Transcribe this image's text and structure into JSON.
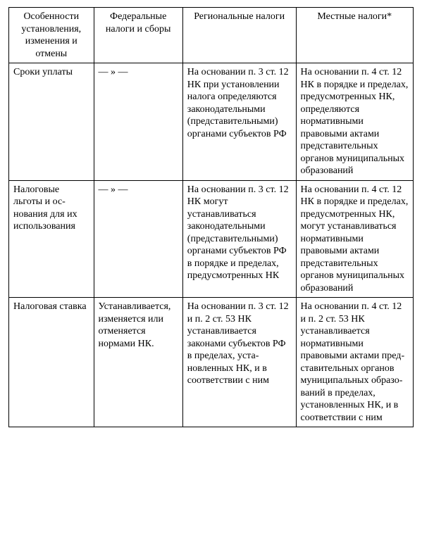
{
  "table": {
    "columns": [
      "Особенности установле­ния, измене­ния и отмены",
      "Федеральные налоги и сборы",
      "Региональные налоги",
      "Местные налоги*"
    ],
    "rows": [
      {
        "c0": "Сроки уп­латы",
        "c1": "— » —",
        "c2": "На основании п. 3 ст. 12 НК при установлении на­лога определяются законодательными (представитель­ными) органами субъектов РФ",
        "c3": "На основании п. 4 ст. 12 НК в по­рядке и пределах, предусмотренных НК, определяют­ся нормативными правовыми ак­тами представи­тельных органов муниципальных образований"
      },
      {
        "c0": "Налоговые льготы и ос­нования для их использо­вания",
        "c1": "— » —",
        "c2": "На основании п. 3 ст. 12 НК могут устанавливаться законодательными (представитель­ными) органами субъектов РФ в порядке и преде­лах, предусмотрен­ных НК",
        "c3": "На основании п. 4 ст. 12 НК в по­рядке и пределах, предусмотрен­ных НК, могут устанавливаться нормативными правовыми ак­тами представи­тельных органов муниципальных образований"
      },
      {
        "c0": "Налоговая ставка",
        "c1": "Устанавливает­ся, изменяется или отменяется нормами НК.",
        "c2": "На основании п. 3 ст. 12 и п. 2 ст. 53 НК устанавли­вается законами субъектов РФ в пределах, уста­новленных НК, и в соответствии с ним",
        "c3": "На основании п. 4 ст. 12 и п. 2 ст. 53 НК устанавлива­ется норматив­ными правовыми актами пред­ставительных органов муници­пальных образо­ваний в пределах, установленных НК, и в соответ­ствии с ним"
      }
    ]
  }
}
